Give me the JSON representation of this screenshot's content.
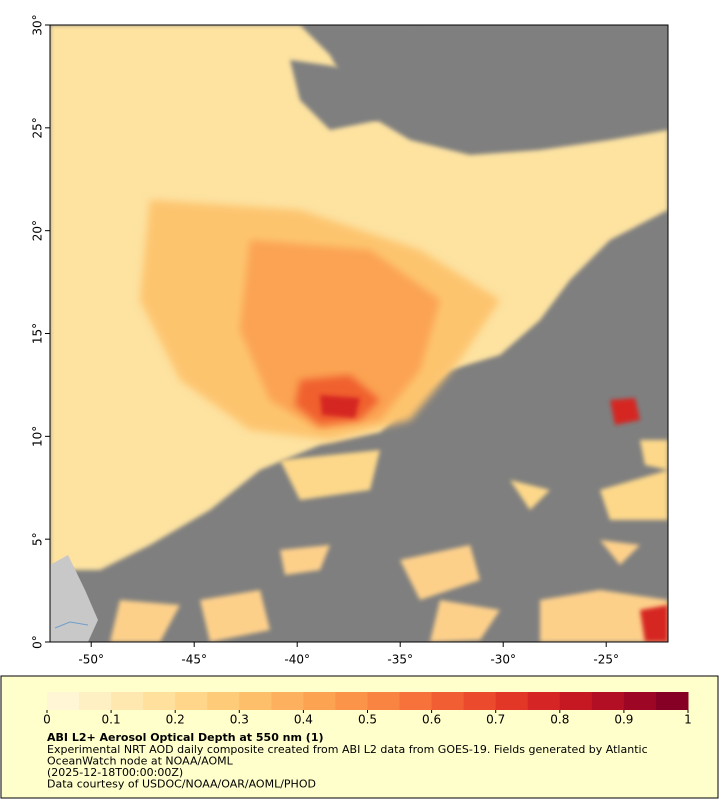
{
  "chart_data": {
    "type": "map",
    "title": "ABI L2+ Aerosol Optical Depth at 550 nm (1)",
    "notes": [
      "Experimental NRT AOD daily composite created from ABI L2 data from GOES-19. Fields generated by Atlantic",
      "OceanWatch node at NOAA/AOML",
      "(2025-12-18T00:00:00Z)",
      "Data courtesy of USDOC/NOAA/OAR/AOML/PHOD"
    ],
    "xlim": [
      -52,
      -22
    ],
    "ylim": [
      0,
      30
    ],
    "xticks": [
      {
        "value": -50,
        "label": "-50°"
      },
      {
        "value": -45,
        "label": "-45°"
      },
      {
        "value": -40,
        "label": "-40°"
      },
      {
        "value": -35,
        "label": "-35°"
      },
      {
        "value": -30,
        "label": "-30°"
      },
      {
        "value": -25,
        "label": "-25°"
      }
    ],
    "yticks": [
      {
        "value": 0,
        "label": "0°"
      },
      {
        "value": 5,
        "label": "5°"
      },
      {
        "value": 10,
        "label": "10°"
      },
      {
        "value": 15,
        "label": "15°"
      },
      {
        "value": 20,
        "label": "20°"
      },
      {
        "value": 25,
        "label": "25°"
      },
      {
        "value": 30,
        "label": "30°"
      }
    ],
    "colorbar": {
      "lim": [
        0,
        1
      ],
      "ticks": [
        0,
        0.1,
        0.2,
        0.3,
        0.4,
        0.5,
        0.6,
        0.7,
        0.8,
        0.9,
        1
      ],
      "colors": [
        "#fff6d6",
        "#fff0c4",
        "#ffe8b0",
        "#ffe09c",
        "#ffd68a",
        "#fecb78",
        "#fdbf6a",
        "#fdb15e",
        "#fca352",
        "#fb9448",
        "#f98340",
        "#f7713a",
        "#f25e33",
        "#eb4a2d",
        "#e23727",
        "#d52524",
        "#c51822",
        "#b20f25",
        "#9d0725",
        "#850024"
      ]
    }
  }
}
